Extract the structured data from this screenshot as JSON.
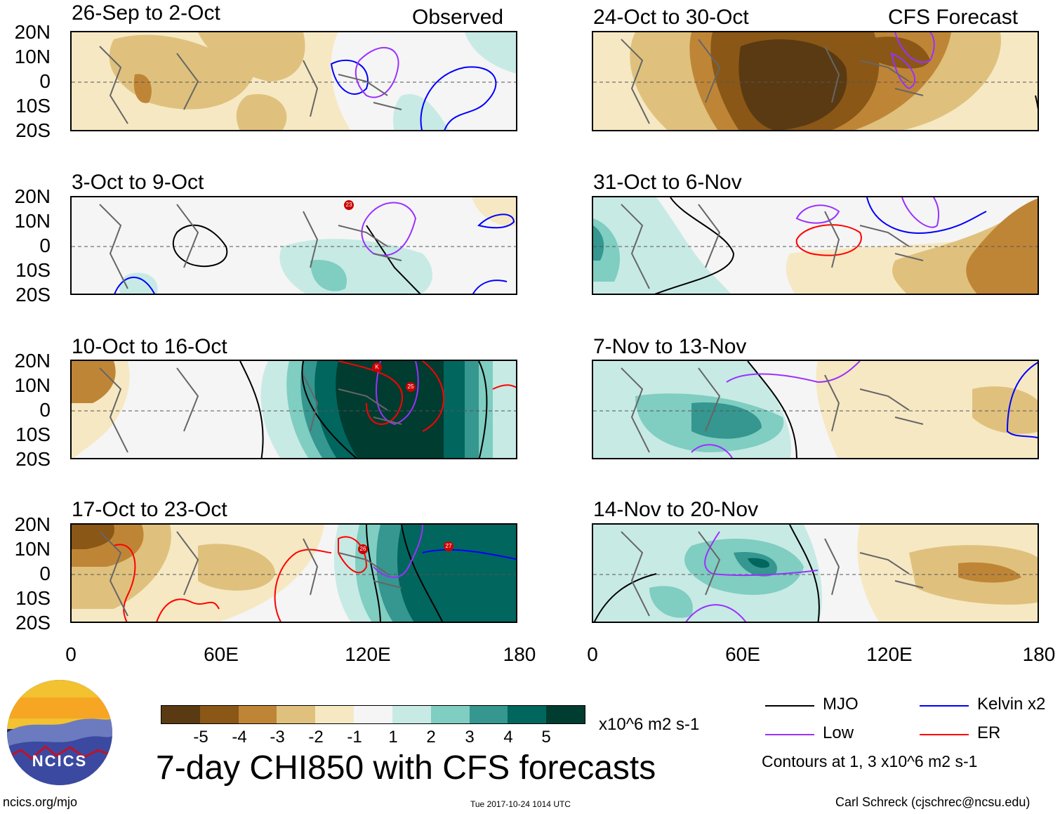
{
  "figure": {
    "main_title": "7-day CHI850 with CFS forecasts",
    "units": "x10^6 m2 s-1",
    "footer_url": "ncics.org/mjo",
    "timestamp": "Tue 2017-10-24 1014 UTC",
    "author": "Carl Schreck (cjschrec@ncsu.edu)",
    "logo_text": "NCICS",
    "contour_note": "Contours at 1, 3 x10^6 m2 s-1"
  },
  "columns": {
    "left_label": "Observed",
    "right_label": "CFS Forecast"
  },
  "axes": {
    "lat_labels": [
      "20N",
      "10N",
      "0",
      "10S",
      "20S"
    ],
    "lon_labels": [
      "0",
      "60E",
      "120E",
      "180"
    ]
  },
  "panels_left": [
    {
      "title": "26-Sep to 2-Oct"
    },
    {
      "title": "3-Oct to 9-Oct"
    },
    {
      "title": "10-Oct to 16-Oct"
    },
    {
      "title": "17-Oct to 23-Oct"
    }
  ],
  "panels_right": [
    {
      "title": "24-Oct to 30-Oct"
    },
    {
      "title": "31-Oct to 6-Nov"
    },
    {
      "title": "7-Nov to 13-Nov"
    },
    {
      "title": "14-Nov to 20-Nov"
    }
  ],
  "colorbar": {
    "ticks": [
      "-5",
      "-4",
      "-3",
      "-2",
      "-1",
      "1",
      "2",
      "3",
      "4",
      "5"
    ],
    "colors": [
      "#5a3a12",
      "#8a5716",
      "#bf8537",
      "#dfc17d",
      "#f6e8c3",
      "#f5f5f5",
      "#c7eae5",
      "#80cdc1",
      "#35978f",
      "#01665e",
      "#003c30"
    ]
  },
  "legend": [
    {
      "label": "MJO",
      "color": "#000000"
    },
    {
      "label": "Kelvin x2",
      "color": "#0000ff"
    },
    {
      "label": "Low",
      "color": "#9b30ff"
    },
    {
      "label": "ER",
      "color": "#ff0000"
    }
  ],
  "storm_markers": [
    {
      "label": "23"
    },
    {
      "label": "K"
    },
    {
      "label": "25"
    },
    {
      "label": "26"
    },
    {
      "label": "27"
    }
  ]
}
